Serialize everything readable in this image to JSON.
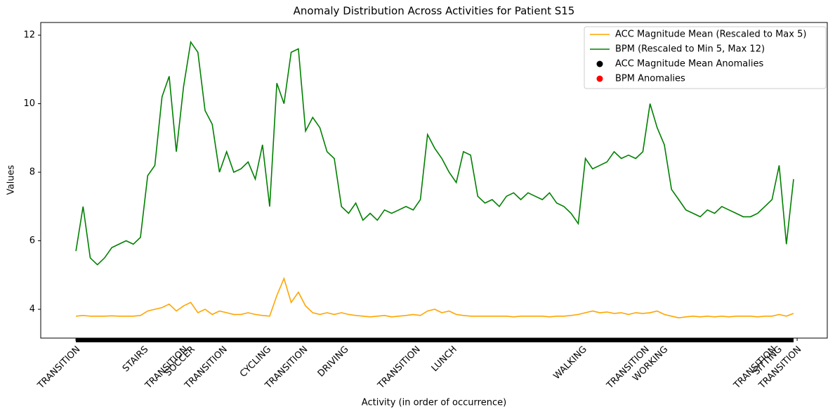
{
  "chart_data": {
    "type": "line",
    "title": "Anomaly Distribution Across Activities for Patient S15",
    "xlabel": "Activity (in order of occurrence)",
    "ylabel": "Values",
    "x": [
      0,
      1,
      2,
      3,
      4,
      5,
      6,
      7,
      8,
      9,
      10,
      11,
      12,
      13,
      14,
      15,
      16,
      17,
      18,
      19,
      20,
      21,
      22,
      23,
      24,
      25,
      26,
      27,
      28,
      29,
      30,
      31,
      32,
      33,
      34,
      35,
      36,
      37,
      38,
      39,
      40,
      41,
      42,
      43,
      44,
      45,
      46,
      47,
      48,
      49,
      50,
      51,
      52,
      53,
      54,
      55,
      56,
      57,
      58,
      59,
      60,
      61,
      62,
      63,
      64,
      65,
      66,
      67,
      68,
      69,
      70,
      71,
      72,
      73,
      74,
      75,
      76,
      77,
      78,
      79,
      80,
      81,
      82,
      83,
      84,
      85,
      86,
      87,
      88,
      89,
      90,
      91,
      92,
      93,
      94,
      95,
      96,
      97,
      98,
      99,
      100
    ],
    "series": [
      {
        "name": "ACC Magnitude Mean (Rescaled to Max 5)",
        "color": "#ffa500",
        "values": [
          3.8,
          3.82,
          3.8,
          3.8,
          3.8,
          3.81,
          3.8,
          3.8,
          3.8,
          3.82,
          3.95,
          4.0,
          4.05,
          4.15,
          3.95,
          4.1,
          4.2,
          3.9,
          4.0,
          3.85,
          3.95,
          3.9,
          3.85,
          3.85,
          3.9,
          3.85,
          3.82,
          3.8,
          4.4,
          4.9,
          4.2,
          4.5,
          4.1,
          3.9,
          3.85,
          3.9,
          3.85,
          3.9,
          3.85,
          3.82,
          3.8,
          3.78,
          3.8,
          3.82,
          3.78,
          3.8,
          3.82,
          3.85,
          3.82,
          3.95,
          4.0,
          3.9,
          3.95,
          3.85,
          3.82,
          3.8,
          3.8,
          3.8,
          3.8,
          3.8,
          3.8,
          3.78,
          3.8,
          3.8,
          3.8,
          3.8,
          3.78,
          3.8,
          3.8,
          3.82,
          3.85,
          3.9,
          3.95,
          3.9,
          3.92,
          3.88,
          3.9,
          3.85,
          3.9,
          3.88,
          3.9,
          3.95,
          3.85,
          3.8,
          3.75,
          3.78,
          3.8,
          3.78,
          3.8,
          3.78,
          3.8,
          3.78,
          3.8,
          3.8,
          3.8,
          3.78,
          3.8,
          3.8,
          3.85,
          3.8,
          3.88
        ]
      },
      {
        "name": "BPM (Rescaled to Min 5, Max 12)",
        "color": "#008000",
        "values": [
          5.7,
          7.0,
          5.5,
          5.3,
          5.5,
          5.8,
          5.9,
          6.0,
          5.9,
          6.1,
          7.9,
          8.2,
          10.2,
          10.8,
          8.6,
          10.5,
          11.8,
          11.5,
          9.8,
          9.4,
          8.0,
          8.6,
          8.0,
          8.1,
          8.3,
          7.8,
          8.8,
          7.0,
          10.6,
          10.0,
          11.5,
          11.6,
          9.2,
          9.6,
          9.3,
          8.6,
          8.4,
          7.0,
          6.8,
          7.1,
          6.6,
          6.8,
          6.6,
          6.9,
          6.8,
          6.9,
          7.0,
          6.9,
          7.2,
          9.1,
          8.7,
          8.4,
          8.0,
          7.7,
          8.6,
          8.5,
          7.3,
          7.1,
          7.2,
          7.0,
          7.3,
          7.4,
          7.2,
          7.4,
          7.3,
          7.2,
          7.4,
          7.1,
          7.0,
          6.8,
          6.5,
          8.4,
          8.1,
          8.2,
          8.3,
          8.6,
          8.4,
          8.5,
          8.4,
          8.6,
          10.0,
          9.3,
          8.8,
          7.5,
          7.2,
          6.9,
          6.8,
          6.7,
          6.9,
          6.8,
          7.0,
          6.9,
          6.8,
          6.7,
          6.7,
          6.8,
          7.0,
          7.2,
          8.2,
          5.9,
          7.8
        ]
      }
    ],
    "legend_markers": [
      {
        "name": "ACC Magnitude Mean Anomalies",
        "color": "#000000"
      },
      {
        "name": "BPM Anomalies",
        "color": "#ff0000"
      }
    ],
    "xlim": [
      -4.9,
      104.7
    ],
    "ylim": [
      3.16,
      12.37
    ],
    "yticks": [
      4,
      6,
      8,
      10,
      12
    ],
    "xticks": [
      {
        "value": 0,
        "label": "TRANSITION"
      },
      {
        "value": 9.5,
        "label": "STAIRS"
      },
      {
        "value": 15,
        "label": "TRANSITION"
      },
      {
        "value": 16,
        "label": "SOCCER"
      },
      {
        "value": 20.5,
        "label": "TRANSITION"
      },
      {
        "value": 26.6,
        "label": "CYCLING"
      },
      {
        "value": 31.7,
        "label": "TRANSITION"
      },
      {
        "value": 37.4,
        "label": "DRIVING"
      },
      {
        "value": 47.4,
        "label": "TRANSITION"
      },
      {
        "value": 52.5,
        "label": "LUNCH"
      },
      {
        "value": 70.6,
        "label": "WALKING"
      },
      {
        "value": 79.3,
        "label": "TRANSITION"
      },
      {
        "value": 81.9,
        "label": "WORKING"
      },
      {
        "value": 97,
        "label": "TRANSITION"
      },
      {
        "value": 97.8,
        "label": "SITTING"
      },
      {
        "value": 100.5,
        "label": "TRANSITION"
      }
    ],
    "legend": "upper right"
  }
}
